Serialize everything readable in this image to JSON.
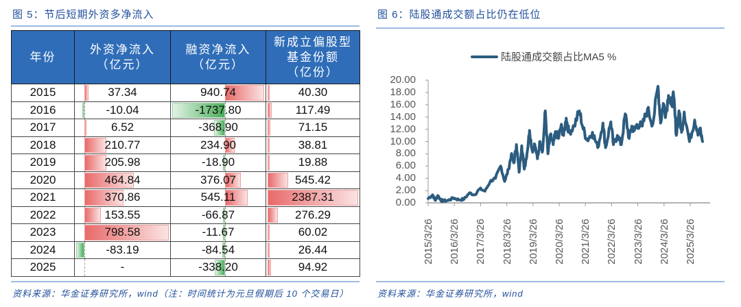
{
  "left_figure": {
    "title": "图 5：节后短期外资多净流入",
    "table": {
      "headers": [
        "年份",
        "外资净流入\n（亿元）",
        "融资净流入\n（亿元）",
        "新成立偏股型\n基金份额\n（亿份）"
      ],
      "header_lines": [
        [
          "年份"
        ],
        [
          "外资净流入",
          "（亿元）"
        ],
        [
          "融资净流入",
          "（亿元）"
        ],
        [
          "新成立偏股型",
          "基金份额",
          "（亿份）"
        ]
      ],
      "rows": [
        {
          "year": "2015",
          "foreign": "37.34",
          "margin": "940.74",
          "fund": "40.30"
        },
        {
          "year": "2016",
          "foreign": "-10.04",
          "margin": "-1737.80",
          "fund": "117.49"
        },
        {
          "year": "2017",
          "foreign": "6.52",
          "margin": "-368.90",
          "fund": "71.15"
        },
        {
          "year": "2018",
          "foreign": "210.77",
          "margin": "234.90",
          "fund": "38.81"
        },
        {
          "year": "2019",
          "foreign": "205.98",
          "margin": "-18.90",
          "fund": "19.88"
        },
        {
          "year": "2020",
          "foreign": "464.84",
          "margin": "376.07",
          "fund": "545.42"
        },
        {
          "year": "2021",
          "foreign": "370.86",
          "margin": "545.11",
          "fund": "2387.31"
        },
        {
          "year": "2022",
          "foreign": "153.55",
          "margin": "-66.87",
          "fund": "276.29"
        },
        {
          "year": "2023",
          "foreign": "798.58",
          "margin": "-11.67",
          "fund": "60.02"
        },
        {
          "year": "2024",
          "foreign": "-83.19",
          "margin": "-84.54",
          "fund": "26.44"
        },
        {
          "year": "2025",
          "foreign": "-",
          "margin": "-338.20",
          "fund": "94.92"
        }
      ],
      "colors": {
        "header_bg": "#2f6db8",
        "positive_bar": "#e86a6a",
        "negative_bar": "#4aae5a"
      }
    },
    "source": "资料来源：华金证券研究所，wind（注：时间统计为元旦假期后 10 个交易日）"
  },
  "right_figure": {
    "title": "图 6：陆股通成交额占比仍在低位",
    "legend": "陆股通成交额占比MA5 %",
    "source": "资料来源：华金证券研究所，wind",
    "line_color": "#2c5c7f"
  },
  "chart_data": [
    {
      "type": "table",
      "title": "图 5：节后短期外资多净流入",
      "columns": [
        "年份",
        "外资净流入（亿元）",
        "融资净流入（亿元）",
        "新成立偏股型基金份额（亿份）"
      ],
      "rows": [
        [
          "2015",
          37.34,
          940.74,
          40.3
        ],
        [
          "2016",
          -10.04,
          -1737.8,
          117.49
        ],
        [
          "2017",
          6.52,
          -368.9,
          71.15
        ],
        [
          "2018",
          210.77,
          234.9,
          38.81
        ],
        [
          "2019",
          205.98,
          -18.9,
          19.88
        ],
        [
          "2020",
          464.84,
          376.07,
          545.42
        ],
        [
          "2021",
          370.86,
          545.11,
          2387.31
        ],
        [
          "2022",
          153.55,
          -66.87,
          276.29
        ],
        [
          "2023",
          798.58,
          -11.67,
          60.02
        ],
        [
          "2024",
          -83.19,
          -84.54,
          26.44
        ],
        [
          "2025",
          null,
          -338.2,
          94.92
        ]
      ]
    },
    {
      "type": "line",
      "title": "图 6：陆股通成交额占比仍在低位",
      "xlabel": "",
      "ylabel": "",
      "ylim": [
        0,
        20
      ],
      "yticks": [
        "0.00",
        "2.00",
        "4.00",
        "6.00",
        "8.00",
        "10.00",
        "12.00",
        "14.00",
        "16.00",
        "18.00",
        "20.00"
      ],
      "xticks": [
        "2015/3/26",
        "2016/3/26",
        "2017/3/26",
        "2018/3/26",
        "2019/3/26",
        "2020/3/26",
        "2021/3/26",
        "2022/3/26",
        "2023/3/26",
        "2024/3/26",
        "2025/3/26"
      ],
      "legend_position": "top",
      "grid": false,
      "series": [
        {
          "name": "陆股通成交额占比MA5 %",
          "x": [
            2015.23,
            2015.4,
            2015.5,
            2015.6,
            2015.7,
            2015.8,
            2016.0,
            2016.2,
            2016.4,
            2016.6,
            2016.8,
            2017.0,
            2017.2,
            2017.4,
            2017.6,
            2017.8,
            2018.0,
            2018.15,
            2018.3,
            2018.4,
            2018.5,
            2018.6,
            2018.7,
            2018.8,
            2018.9,
            2019.0,
            2019.1,
            2019.2,
            2019.3,
            2019.4,
            2019.5,
            2019.6,
            2019.7,
            2019.8,
            2019.9,
            2020.0,
            2020.1,
            2020.2,
            2020.3,
            2020.4,
            2020.5,
            2020.6,
            2020.8,
            2021.0,
            2021.15,
            2021.3,
            2021.5,
            2021.7,
            2021.9,
            2022.0,
            2022.2,
            2022.3,
            2022.45,
            2022.6,
            2022.75,
            2022.9,
            2023.0,
            2023.1,
            2023.2,
            2023.4,
            2023.6,
            2023.8,
            2024.0,
            2024.1,
            2024.2,
            2024.3,
            2024.4,
            2024.5,
            2024.6,
            2024.7,
            2024.8,
            2024.9,
            2025.0,
            2025.2,
            2025.4,
            2025.55,
            2025.6,
            2025.7
          ],
          "values": [
            0.7,
            1.3,
            0.4,
            1.2,
            0.5,
            0.3,
            0.4,
            0.8,
            0.5,
            0.6,
            1.6,
            1.3,
            2.3,
            1.9,
            3.5,
            4.0,
            6.0,
            3.5,
            5.5,
            7.8,
            6.5,
            9.5,
            5.0,
            9.3,
            5.5,
            8.0,
            11.8,
            8.5,
            9.5,
            7.2,
            10.0,
            8.5,
            15.0,
            8.0,
            11.0,
            9.5,
            11.5,
            10.5,
            12.5,
            11.0,
            13.8,
            11.5,
            12.5,
            15.0,
            12.0,
            10.2,
            11.5,
            9.0,
            13.0,
            9.0,
            13.2,
            9.5,
            11.0,
            9.5,
            14.5,
            10.5,
            12.5,
            11.8,
            12.8,
            12.5,
            15.3,
            12.8,
            19.0,
            13.0,
            16.2,
            14.5,
            17.5,
            16.0,
            17.3,
            11.0,
            15.0,
            11.5,
            14.8,
            10.0,
            13.5,
            11.2,
            12.0,
            10.0
          ]
        }
      ]
    }
  ]
}
